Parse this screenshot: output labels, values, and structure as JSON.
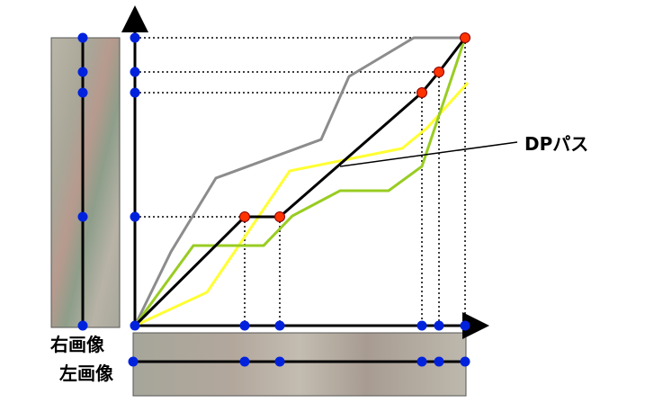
{
  "labels": {
    "right_image": "右画像",
    "left_image": "左画像",
    "dp_path": "DPパス"
  }
}
